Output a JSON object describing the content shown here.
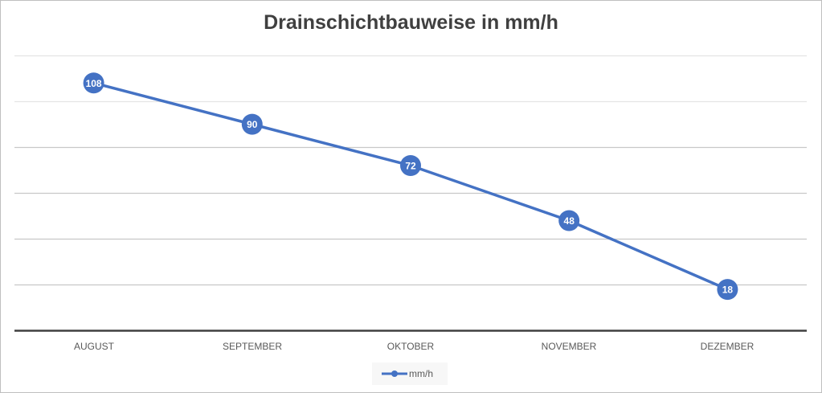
{
  "chart_data": {
    "type": "line",
    "title": "Drainschichtbauweise in mm/h",
    "categories": [
      "AUGUST",
      "SEPTEMBER",
      "OKTOBER",
      "NOVEMBER",
      "DEZEMBER"
    ],
    "series": [
      {
        "name": "mm/h",
        "values": [
          108,
          90,
          72,
          48,
          18
        ],
        "color": "#4472c4"
      }
    ],
    "xlabel": "",
    "ylabel": "",
    "ylim": [
      0,
      120
    ],
    "y_gridlines": [
      20,
      40,
      60,
      80,
      100,
      120
    ],
    "y_tick_labels_visible": false,
    "grid": true,
    "data_labels": true,
    "legend_position": "bottom"
  },
  "title": "Drainschichtbauweise in mm/h",
  "x_labels": [
    "AUGUST",
    "SEPTEMBER",
    "OKTOBER",
    "NOVEMBER",
    "DEZEMBER"
  ],
  "legend": {
    "label": "mm/h"
  }
}
